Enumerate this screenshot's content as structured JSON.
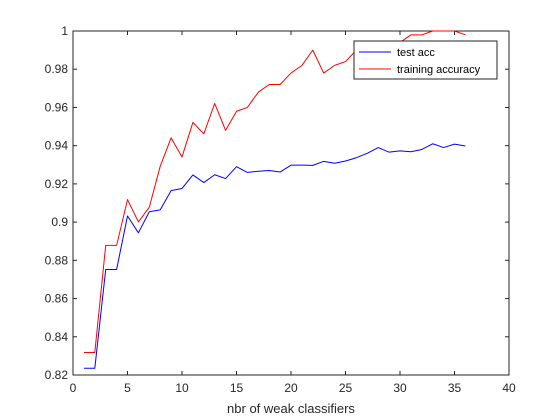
{
  "chart_data": {
    "type": "line",
    "title": "",
    "xlabel": "nbr of weak classifiers",
    "ylabel": "",
    "xlim": [
      0,
      40
    ],
    "ylim": [
      0.82,
      1.0
    ],
    "xticks": [
      0,
      5,
      10,
      15,
      20,
      25,
      30,
      35,
      40
    ],
    "xtick_labels": [
      "0",
      "5",
      "10",
      "15",
      "20",
      "25",
      "30",
      "35",
      "40"
    ],
    "yticks": [
      0.82,
      0.84,
      0.86,
      0.88,
      0.9,
      0.92,
      0.94,
      0.96,
      0.98,
      1.0
    ],
    "ytick_labels": [
      "0.82",
      "0.84",
      "0.86",
      "0.88",
      "0.9",
      "0.92",
      "0.94",
      "0.96",
      "0.98",
      "1"
    ],
    "grid": false,
    "legend_position": "top-right",
    "x": [
      1,
      2,
      3,
      4,
      5,
      6,
      7,
      8,
      9,
      10,
      11,
      12,
      13,
      14,
      15,
      16,
      17,
      18,
      19,
      20,
      21,
      22,
      23,
      24,
      25,
      26,
      27,
      28,
      29,
      30,
      31,
      32,
      33,
      34,
      35,
      36
    ],
    "series": [
      {
        "name": "test acc",
        "color": "#0000ff",
        "values": [
          0.8235,
          0.8235,
          0.8752,
          0.8752,
          0.9032,
          0.8944,
          0.9054,
          0.9064,
          0.9165,
          0.9176,
          0.9247,
          0.9207,
          0.9248,
          0.9228,
          0.929,
          0.926,
          0.9266,
          0.927,
          0.9262,
          0.9298,
          0.9298,
          0.9297,
          0.9318,
          0.9308,
          0.932,
          0.9337,
          0.936,
          0.939,
          0.9366,
          0.9373,
          0.9368,
          0.938,
          0.941,
          0.939,
          0.9408,
          0.9398
        ]
      },
      {
        "name": "training accuracy",
        "color": "#ff0000",
        "values": [
          0.8318,
          0.8318,
          0.8878,
          0.8878,
          0.9118,
          0.9001,
          0.9078,
          0.9292,
          0.9441,
          0.9341,
          0.9522,
          0.9462,
          0.9621,
          0.948,
          0.958,
          0.96,
          0.968,
          0.972,
          0.972,
          0.978,
          0.982,
          0.99,
          0.978,
          0.982,
          0.984,
          0.99,
          0.992,
          0.99,
          0.992,
          0.994,
          0.998,
          0.998,
          1.0,
          1.0,
          1.0,
          0.998
        ]
      }
    ]
  }
}
